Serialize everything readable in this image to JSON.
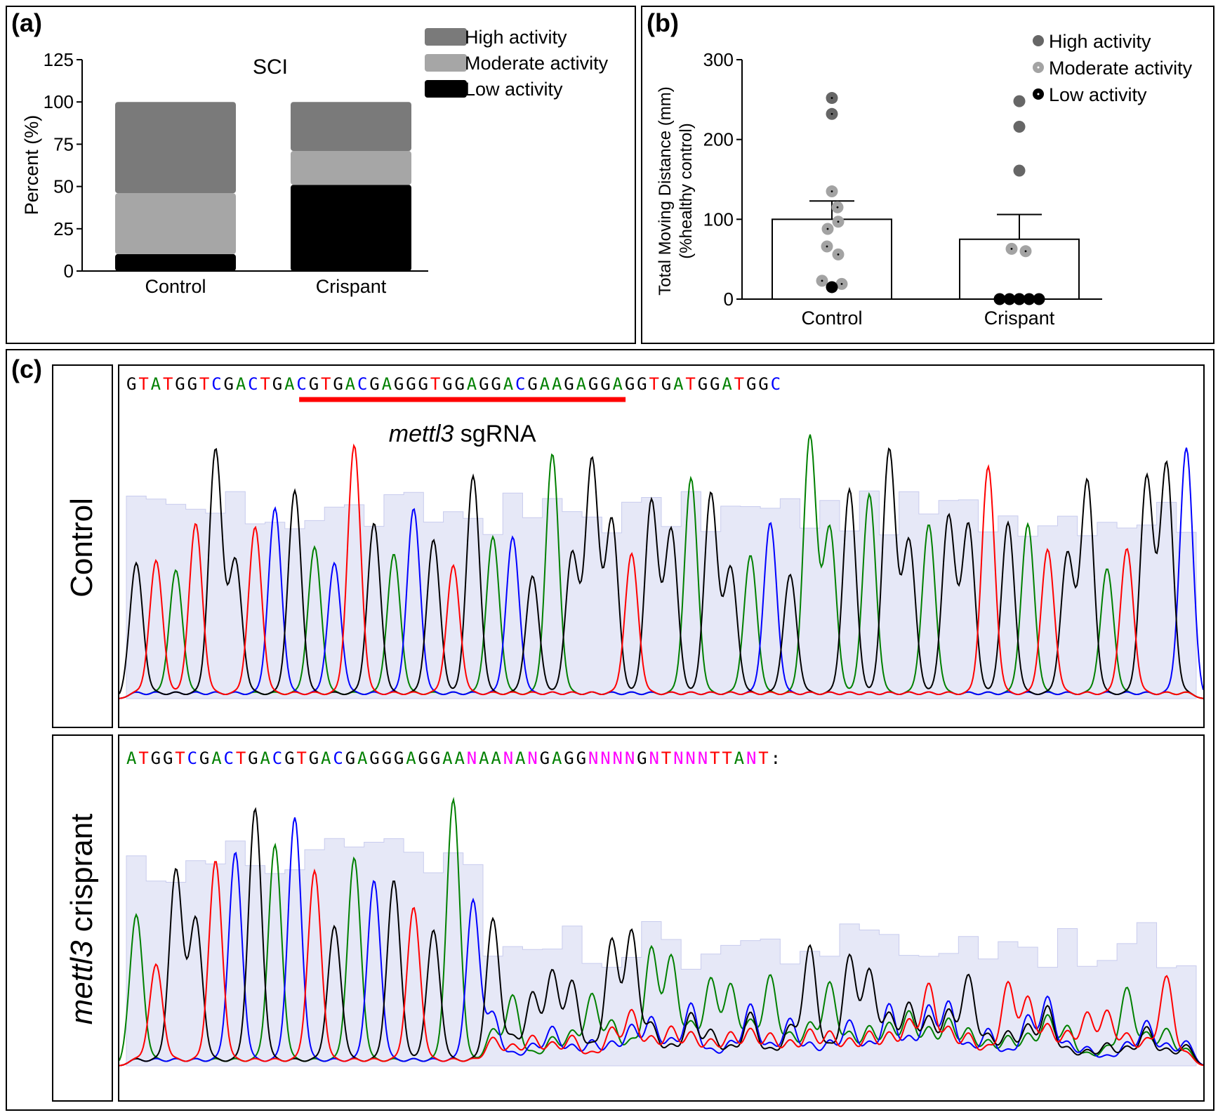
{
  "panels": {
    "a_label": "(a)",
    "b_label": "(b)",
    "c_label": "(c)"
  },
  "colors": {
    "high": "#7a7a7a",
    "moderate": "#a6a6a6",
    "low": "#000000",
    "base_A": "#008000",
    "base_C": "#0000ff",
    "base_G": "#000000",
    "base_T": "#ff0000",
    "base_N": "#ff00ff",
    "sgRNA_bar": "#ff0000",
    "quality_shade": "#e6e8f7"
  },
  "chart_data": [
    {
      "panel": "a",
      "type": "bar",
      "stacked": true,
      "title": "SCI",
      "xlabel": "",
      "ylabel": "Percent (%)",
      "ylim": [
        0,
        125
      ],
      "yticks": [
        "0",
        "25",
        "50",
        "75",
        "100",
        "125"
      ],
      "categories": [
        "Control",
        "Crispant"
      ],
      "series": [
        {
          "name": "Low activity",
          "values": [
            10,
            51
          ],
          "color": "#000000"
        },
        {
          "name": "Moderate activity",
          "values": [
            36,
            20
          ],
          "color": "#a6a6a6"
        },
        {
          "name": "High activity",
          "values": [
            54,
            29
          ],
          "color": "#7a7a7a"
        }
      ],
      "legend": [
        "High activity",
        "Moderate activity",
        "Low activity"
      ],
      "legend_position": "top-right",
      "grid": false
    },
    {
      "panel": "b",
      "type": "bar",
      "subtype": "bar with scatter points and error bars",
      "ylabel_line1": "Total Moving Distance (mm)",
      "ylabel_line2": "(%healthy control)",
      "ylim": [
        0,
        300
      ],
      "yticks": [
        "0",
        "100",
        "200",
        "300"
      ],
      "categories": [
        "Control",
        "Crispant"
      ],
      "bar_means": [
        100,
        75
      ],
      "error_upper": [
        123,
        106
      ],
      "points": [
        {
          "group": "Control",
          "y": 252,
          "activity": "High activity"
        },
        {
          "group": "Control",
          "y": 232,
          "activity": "High activity"
        },
        {
          "group": "Control",
          "y": 135,
          "activity": "Moderate activity"
        },
        {
          "group": "Control",
          "y": 115,
          "activity": "Moderate activity"
        },
        {
          "group": "Control",
          "y": 97,
          "activity": "Moderate activity"
        },
        {
          "group": "Control",
          "y": 88,
          "activity": "Moderate activity"
        },
        {
          "group": "Control",
          "y": 66,
          "activity": "Moderate activity"
        },
        {
          "group": "Control",
          "y": 56,
          "activity": "Moderate activity"
        },
        {
          "group": "Control",
          "y": 23,
          "activity": "Moderate activity"
        },
        {
          "group": "Control",
          "y": 19,
          "activity": "Moderate activity"
        },
        {
          "group": "Control",
          "y": 15,
          "activity": "Low activity"
        },
        {
          "group": "Crispant",
          "y": 248,
          "activity": "High activity"
        },
        {
          "group": "Crispant",
          "y": 216,
          "activity": "High activity"
        },
        {
          "group": "Crispant",
          "y": 161,
          "activity": "High activity"
        },
        {
          "group": "Crispant",
          "y": 63,
          "activity": "Moderate activity"
        },
        {
          "group": "Crispant",
          "y": 60,
          "activity": "Moderate activity"
        },
        {
          "group": "Crispant",
          "y": 0,
          "activity": "Low activity"
        },
        {
          "group": "Crispant",
          "y": 0,
          "activity": "Low activity"
        },
        {
          "group": "Crispant",
          "y": 0,
          "activity": "Low activity"
        },
        {
          "group": "Crispant",
          "y": 0,
          "activity": "Low activity"
        },
        {
          "group": "Crispant",
          "y": 0,
          "activity": "Low activity"
        },
        {
          "group": "Crispant",
          "y": 0,
          "activity": "Low activity"
        }
      ],
      "legend": [
        "High activity",
        "Moderate activity",
        "Low activity"
      ],
      "legend_position": "top-right",
      "grid": false
    }
  ],
  "chromatogram": {
    "type": "sanger sequencing chromatogram",
    "rows": [
      {
        "label": "Control",
        "sequence": "GTATGGTCGACTGACGTGACGAGGGTGGAGGACGAAGAGGAGGTGATGGATGGC",
        "annotation": {
          "label_italic": "mettl3",
          "label_rest": " sgRNA",
          "start": 9,
          "end": 26
        }
      },
      {
        "label_italic": "mettl3",
        "label_rest": " crisprant",
        "sequence": "ATGGTCGACTGACGTGACGAGGGAGGAANAANANGAGGNNNNGNTNNNTTANT:"
      }
    ]
  }
}
